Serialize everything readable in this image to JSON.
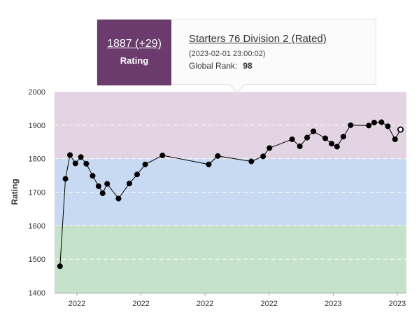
{
  "tooltip": {
    "rating": "1887 (+29)",
    "rating_caption": "Rating",
    "contest_name": "Starters 76 Division 2 (Rated)",
    "date": "(2023-02-01 23:00:02)",
    "rank_label": "Global Rank:",
    "rank_value": "98"
  },
  "colors": {
    "tooltip_accent": "#6b3b6e",
    "band_green": "#c5e3cb",
    "band_blue": "#c8daf2",
    "band_purple": "#e2d4e2",
    "line": "#000000"
  },
  "chart_data": {
    "type": "line",
    "ylabel": "Rating",
    "xlabel": "",
    "ylim": [
      1400,
      2000
    ],
    "yticks": [
      1400,
      1500,
      1600,
      1700,
      1800,
      1900,
      2000
    ],
    "xtick_labels": [
      "2022",
      "2022",
      "2022",
      "2022",
      "2023",
      "2023"
    ],
    "bands": [
      {
        "from": 1400,
        "to": 1600,
        "color": "#c5e3cb"
      },
      {
        "from": 1600,
        "to": 1800,
        "color": "#c8daf2"
      },
      {
        "from": 1800,
        "to": 2000,
        "color": "#e2d4e2"
      }
    ],
    "grid": true,
    "series": [
      {
        "values": [
          1479,
          1740,
          1811,
          1786,
          1805,
          1785,
          1749,
          1718,
          1697,
          1725,
          1681,
          1726,
          1753,
          1783,
          1810,
          1783,
          1808,
          1792,
          1807,
          1832,
          1858,
          1837,
          1863,
          1882,
          1861,
          1845,
          1836,
          1866,
          1900,
          1899,
          1908,
          1909,
          1897,
          1858,
          1887
        ],
        "x": [
          0.0,
          0.6,
          1.1,
          1.7,
          2.3,
          2.9,
          3.6,
          4.25,
          4.7,
          5.2,
          6.45,
          7.65,
          8.5,
          9.4,
          11.3,
          16.4,
          17.4,
          21.1,
          22.4,
          23.1,
          25.6,
          26.45,
          27.25,
          27.95,
          29.25,
          29.95,
          30.55,
          31.25,
          32.05,
          34.05,
          34.65,
          35.45,
          36.15,
          36.95,
          37.55
        ],
        "last_point_hollow": true
      }
    ]
  }
}
